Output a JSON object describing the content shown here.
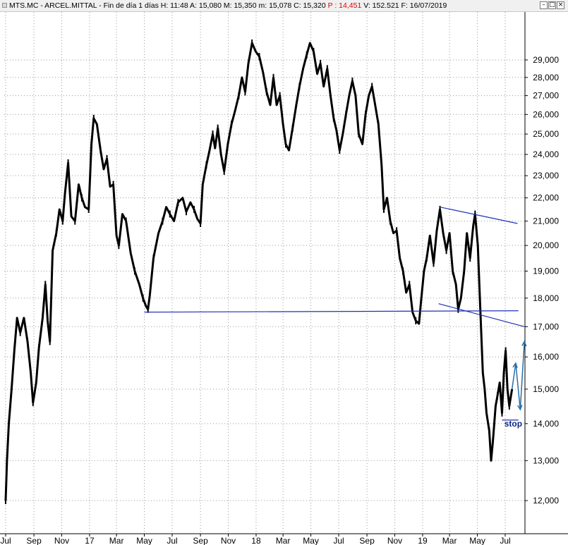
{
  "window": {
    "ticker": "MTS.MC - ARCEL.MITTAL",
    "info": "Fin de día 1 días",
    "h": "H: 11:48",
    "a": "A: 15,080",
    "m": "M: 15,350",
    "mm": "m: 15,078",
    "c": "C: 15,320",
    "p": "P : 14,451",
    "v": "V: 152.521",
    "f": "F: 16/07/2019",
    "min_label": "–",
    "max_label": "□",
    "close_label": "×"
  },
  "chart_data": {
    "type": "line",
    "title": "MTS.MC - ARCEL.MITTAL",
    "y_scale": "log",
    "ylim": [
      11.6,
      30.6
    ],
    "y_ticks": [
      "29,000",
      "28,000",
      "27,000",
      "26,000",
      "25,000",
      "24,000",
      "23,000",
      "22,000",
      "21,000",
      "20,000",
      "19,000",
      "18,000",
      "17,000",
      "16,000",
      "15,000",
      "14,000",
      "13,000",
      "12,000"
    ],
    "y_tick_values": [
      29,
      28,
      27,
      26,
      25,
      24,
      23,
      22,
      21,
      20,
      19,
      18,
      17,
      16,
      15,
      14,
      13,
      12
    ],
    "x_ticks": [
      "Jul",
      "Sep",
      "Nov",
      "17",
      "Mar",
      "May",
      "Jul",
      "Sep",
      "Nov",
      "18",
      "Mar",
      "May",
      "Jul",
      "Sep",
      "Nov",
      "19",
      "Mar",
      "May",
      "Jul"
    ],
    "x_tick_dates": [
      "2016-07-01",
      "2016-09-01",
      "2016-11-01",
      "2017-01-01",
      "2017-03-01",
      "2017-05-01",
      "2017-07-01",
      "2017-09-01",
      "2017-11-01",
      "2018-01-01",
      "2018-03-01",
      "2018-05-01",
      "2018-07-01",
      "2018-09-01",
      "2018-11-01",
      "2019-01-01",
      "2019-03-01",
      "2019-05-01",
      "2019-07-01"
    ],
    "grid": true,
    "series": [
      {
        "points": [
          [
            "2016-07-01",
            12.0
          ],
          [
            "2016-07-04",
            13.0
          ],
          [
            "2016-07-08",
            14.0
          ],
          [
            "2016-07-14",
            15.0
          ],
          [
            "2016-07-20",
            16.2
          ],
          [
            "2016-07-26",
            17.3
          ],
          [
            "2016-08-02",
            16.8
          ],
          [
            "2016-08-10",
            17.3
          ],
          [
            "2016-08-18",
            16.5
          ],
          [
            "2016-08-25",
            15.5
          ],
          [
            "2016-08-30",
            14.6
          ],
          [
            "2016-09-06",
            15.2
          ],
          [
            "2016-09-12",
            16.3
          ],
          [
            "2016-09-20",
            17.3
          ],
          [
            "2016-09-26",
            18.5
          ],
          [
            "2016-10-01",
            17.2
          ],
          [
            "2016-10-06",
            16.5
          ],
          [
            "2016-10-12",
            19.8
          ],
          [
            "2016-10-20",
            20.5
          ],
          [
            "2016-10-27",
            21.5
          ],
          [
            "2016-11-03",
            21.0
          ],
          [
            "2016-11-08",
            22.2
          ],
          [
            "2016-11-15",
            23.6
          ],
          [
            "2016-11-22",
            21.2
          ],
          [
            "2016-11-30",
            21.0
          ],
          [
            "2016-12-08",
            22.6
          ],
          [
            "2016-12-15",
            22.0
          ],
          [
            "2016-12-22",
            21.6
          ],
          [
            "2016-12-30",
            21.5
          ],
          [
            "2017-01-05",
            24.5
          ],
          [
            "2017-01-10",
            25.8
          ],
          [
            "2017-01-17",
            25.5
          ],
          [
            "2017-01-25",
            24.2
          ],
          [
            "2017-02-01",
            23.3
          ],
          [
            "2017-02-08",
            23.8
          ],
          [
            "2017-02-15",
            22.5
          ],
          [
            "2017-02-22",
            22.6
          ],
          [
            "2017-03-01",
            20.4
          ],
          [
            "2017-03-06",
            20.0
          ],
          [
            "2017-03-14",
            21.3
          ],
          [
            "2017-03-22",
            21.0
          ],
          [
            "2017-04-01",
            19.7
          ],
          [
            "2017-04-10",
            19.0
          ],
          [
            "2017-04-20",
            18.5
          ],
          [
            "2017-04-28",
            18.0
          ],
          [
            "2017-05-05",
            17.7
          ],
          [
            "2017-05-09",
            17.6
          ],
          [
            "2017-05-13",
            18.1
          ],
          [
            "2017-05-21",
            19.5
          ],
          [
            "2017-06-01",
            20.5
          ],
          [
            "2017-06-10",
            21.0
          ],
          [
            "2017-06-18",
            21.6
          ],
          [
            "2017-06-26",
            21.3
          ],
          [
            "2017-07-05",
            21.0
          ],
          [
            "2017-07-14",
            21.8
          ],
          [
            "2017-07-24",
            22.0
          ],
          [
            "2017-08-01",
            21.4
          ],
          [
            "2017-08-10",
            21.8
          ],
          [
            "2017-08-18",
            21.5
          ],
          [
            "2017-08-25",
            21.1
          ],
          [
            "2017-09-01",
            20.9
          ],
          [
            "2017-09-06",
            22.6
          ],
          [
            "2017-09-14",
            23.5
          ],
          [
            "2017-09-21",
            24.2
          ],
          [
            "2017-09-28",
            25.0
          ],
          [
            "2017-10-03",
            24.3
          ],
          [
            "2017-10-09",
            25.3
          ],
          [
            "2017-10-16",
            24.0
          ],
          [
            "2017-10-23",
            23.2
          ],
          [
            "2017-10-31",
            24.5
          ],
          [
            "2017-11-08",
            25.5
          ],
          [
            "2017-11-16",
            26.2
          ],
          [
            "2017-11-24",
            27.0
          ],
          [
            "2017-12-01",
            28.0
          ],
          [
            "2017-12-08",
            27.2
          ],
          [
            "2017-12-15",
            28.8
          ],
          [
            "2017-12-23",
            30.0
          ],
          [
            "2017-12-31",
            29.5
          ],
          [
            "2018-01-08",
            29.2
          ],
          [
            "2018-01-16",
            28.3
          ],
          [
            "2018-01-24",
            27.2
          ],
          [
            "2018-02-01",
            26.5
          ],
          [
            "2018-02-08",
            28.0
          ],
          [
            "2018-02-15",
            26.5
          ],
          [
            "2018-02-22",
            27.0
          ],
          [
            "2018-03-01",
            25.5
          ],
          [
            "2018-03-07",
            24.5
          ],
          [
            "2018-03-14",
            24.2
          ],
          [
            "2018-03-22",
            25.3
          ],
          [
            "2018-03-30",
            26.5
          ],
          [
            "2018-04-06",
            27.5
          ],
          [
            "2018-04-14",
            28.5
          ],
          [
            "2018-04-22",
            29.3
          ],
          [
            "2018-04-29",
            30.0
          ],
          [
            "2018-05-07",
            29.5
          ],
          [
            "2018-05-15",
            28.2
          ],
          [
            "2018-05-22",
            28.8
          ],
          [
            "2018-05-29",
            27.5
          ],
          [
            "2018-06-06",
            28.5
          ],
          [
            "2018-06-13",
            27.0
          ],
          [
            "2018-06-20",
            25.8
          ],
          [
            "2018-06-26",
            25.2
          ],
          [
            "2018-07-03",
            24.2
          ],
          [
            "2018-07-10",
            25.0
          ],
          [
            "2018-07-17",
            26.0
          ],
          [
            "2018-07-24",
            27.0
          ],
          [
            "2018-07-31",
            27.8
          ],
          [
            "2018-08-07",
            27.0
          ],
          [
            "2018-08-14",
            25.0
          ],
          [
            "2018-08-22",
            24.5
          ],
          [
            "2018-08-29",
            26.0
          ],
          [
            "2018-09-05",
            27.0
          ],
          [
            "2018-09-12",
            27.5
          ],
          [
            "2018-09-19",
            26.5
          ],
          [
            "2018-09-26",
            25.5
          ],
          [
            "2018-10-03",
            23.5
          ],
          [
            "2018-10-08",
            21.5
          ],
          [
            "2018-10-15",
            22.0
          ],
          [
            "2018-10-22",
            21.0
          ],
          [
            "2018-10-29",
            20.5
          ],
          [
            "2018-11-05",
            20.6
          ],
          [
            "2018-11-12",
            19.5
          ],
          [
            "2018-11-19",
            19.0
          ],
          [
            "2018-11-26",
            18.2
          ],
          [
            "2018-12-03",
            18.5
          ],
          [
            "2018-12-10",
            17.5
          ],
          [
            "2018-12-17",
            17.2
          ],
          [
            "2018-12-24",
            17.1
          ],
          [
            "2018-12-28",
            17.8
          ],
          [
            "2019-01-04",
            19.0
          ],
          [
            "2019-01-10",
            19.5
          ],
          [
            "2019-01-17",
            20.4
          ],
          [
            "2019-01-25",
            19.3
          ],
          [
            "2019-02-01",
            20.6
          ],
          [
            "2019-02-08",
            21.5
          ],
          [
            "2019-02-15",
            20.5
          ],
          [
            "2019-02-22",
            19.8
          ],
          [
            "2019-03-01",
            20.5
          ],
          [
            "2019-03-08",
            19.0
          ],
          [
            "2019-03-15",
            18.5
          ],
          [
            "2019-03-20",
            17.6
          ],
          [
            "2019-03-26",
            18.0
          ],
          [
            "2019-04-02",
            19.0
          ],
          [
            "2019-04-08",
            20.5
          ],
          [
            "2019-04-15",
            19.5
          ],
          [
            "2019-04-22",
            20.8
          ],
          [
            "2019-04-26",
            21.3
          ],
          [
            "2019-05-02",
            20.0
          ],
          [
            "2019-05-07",
            17.8
          ],
          [
            "2019-05-13",
            15.5
          ],
          [
            "2019-05-17",
            15.0
          ],
          [
            "2019-05-21",
            14.3
          ],
          [
            "2019-05-27",
            13.8
          ],
          [
            "2019-05-31",
            13.0
          ],
          [
            "2019-06-04",
            13.5
          ],
          [
            "2019-06-10",
            14.5
          ],
          [
            "2019-06-14",
            14.8
          ],
          [
            "2019-06-19",
            15.2
          ],
          [
            "2019-06-24",
            14.3
          ],
          [
            "2019-06-28",
            15.5
          ],
          [
            "2019-07-02",
            16.2
          ],
          [
            "2019-07-06",
            15.0
          ],
          [
            "2019-07-10",
            14.5
          ],
          [
            "2019-07-16",
            15.0
          ]
        ]
      }
    ],
    "annotations": {
      "horizontal_support": {
        "from": [
          "2017-05-01",
          17.5
        ],
        "to": [
          "2019-07-30",
          17.55
        ]
      },
      "upper_trendline": {
        "from": [
          "2019-02-08",
          21.6
        ],
        "to": [
          "2019-07-28",
          20.9
        ]
      },
      "lower_trendline": {
        "from": [
          "2019-02-05",
          17.8
        ],
        "to": [
          "2019-08-12",
          17.0
        ]
      },
      "stop_level": {
        "from": [
          "2019-06-24",
          14.1
        ],
        "to": [
          "2019-07-30",
          14.1
        ]
      },
      "stop_label": "stop",
      "projection": [
        [
          "2019-07-16",
          15.0
        ],
        [
          "2019-07-24",
          15.8
        ],
        [
          "2019-08-03",
          14.4
        ],
        [
          "2019-08-12",
          16.5
        ]
      ]
    },
    "colors": {
      "price": "#000000",
      "trendlines": "#1f2fb5",
      "projection": "#2a6fa6",
      "stop": "#0b2a80",
      "grid": "#9a9a9a"
    }
  }
}
